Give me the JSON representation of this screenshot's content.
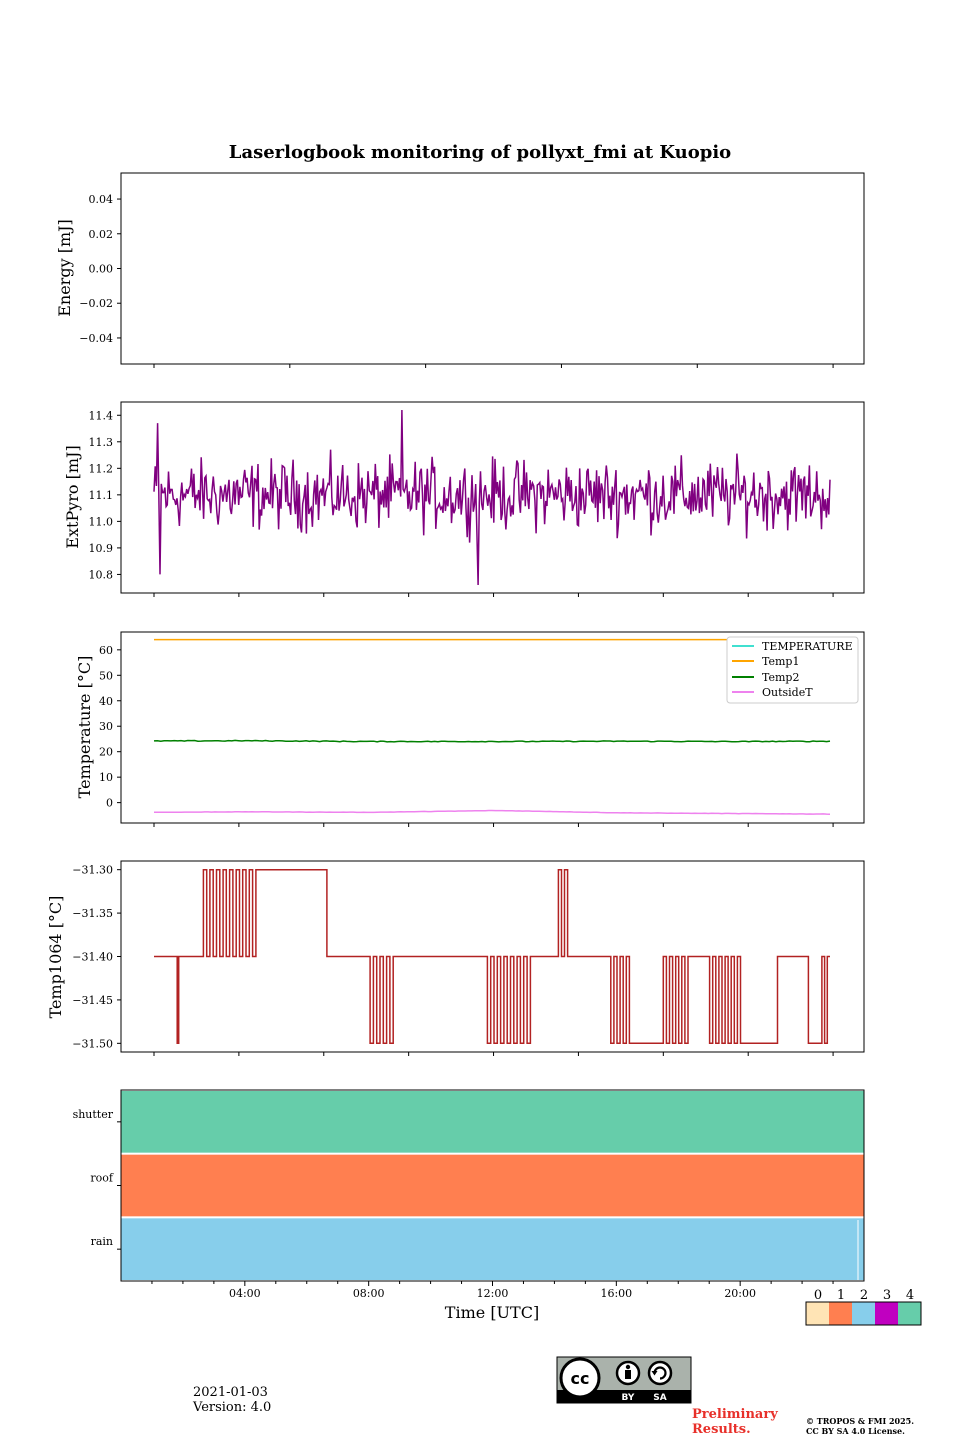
{
  "figure": {
    "title": "Laserlogbook monitoring of pollyxt_fmi at Kuopio",
    "xlabel": "Time [UTC]",
    "date": "2021-01-03",
    "version": "Version: 4.0",
    "prelim_line1": "Preliminary",
    "prelim_line2": "Results.",
    "copyright_line1": "© TROPOS & FMI 2025.",
    "copyright_line2": "CC BY SA 4.0 License.",
    "license_badge": {
      "by": "BY",
      "sa": "SA",
      "cc": "cc"
    }
  },
  "chart_data": [
    {
      "id": "energy",
      "type": "line",
      "ylabel": "Energy [mJ]",
      "ylim": [
        -0.055,
        0.055
      ],
      "yticks": [
        0.04,
        0.02,
        0.0,
        -0.02,
        -0.04
      ],
      "ytick_labels": [
        "0.04",
        "0.02",
        "0.00",
        "−0.02",
        "−0.04"
      ],
      "series": []
    },
    {
      "id": "extpyro",
      "type": "line",
      "ylabel": "ExtPyro [mJ]",
      "ylim": [
        10.73,
        11.45
      ],
      "yticks": [
        11.4,
        11.3,
        11.2,
        11.1,
        11.0,
        10.9,
        10.8
      ],
      "ytick_labels": [
        "11.4",
        "11.3",
        "11.2",
        "11.1",
        "11.0",
        "10.9",
        "10.8"
      ],
      "x_range_hours": [
        1.0,
        22.9
      ],
      "mean": 11.1,
      "spread": 0.1,
      "min": 10.76,
      "max": 11.42,
      "color": "#800080"
    },
    {
      "id": "temperature",
      "type": "line",
      "ylabel": "Temperature [°C]",
      "ylim": [
        -8,
        67
      ],
      "yticks": [
        60,
        50,
        40,
        30,
        20,
        10,
        0
      ],
      "ytick_labels": [
        "60",
        "50",
        "40",
        "30",
        "20",
        "10",
        "0"
      ],
      "series": [
        {
          "name": "TEMPERATURE",
          "color": "#40e0d0",
          "points": []
        },
        {
          "name": "Temp1",
          "color": "#ffa500",
          "points": [
            [
              1.0,
              64.0
            ],
            [
              22.9,
              64.0
            ]
          ]
        },
        {
          "name": "Temp2",
          "color": "#008000",
          "points": [
            [
              1.0,
              24.2
            ],
            [
              4.0,
              24.3
            ],
            [
              8.0,
              24.0
            ],
            [
              12.0,
              24.0
            ],
            [
              16.0,
              24.1
            ],
            [
              20.0,
              24.0
            ],
            [
              22.9,
              24.1
            ]
          ]
        },
        {
          "name": "OutsideT",
          "color": "#ee82ee",
          "points": [
            [
              1.0,
              -3.8
            ],
            [
              4.0,
              -3.6
            ],
            [
              8.0,
              -3.8
            ],
            [
              11.0,
              -3.3
            ],
            [
              12.0,
              -3.1
            ],
            [
              14.0,
              -3.5
            ],
            [
              16.0,
              -4.0
            ],
            [
              20.0,
              -4.3
            ],
            [
              22.9,
              -4.5
            ]
          ]
        }
      ],
      "legend_loc": "upper right"
    },
    {
      "id": "temp1064",
      "type": "line",
      "ylabel": "Temp1064 [°C]",
      "ylim": [
        -31.51,
        -31.29
      ],
      "yticks": [
        -31.3,
        -31.35,
        -31.4,
        -31.45,
        -31.5
      ],
      "ytick_labels": [
        "−31.30",
        "−31.35",
        "−31.40",
        "−31.45",
        "−31.50"
      ],
      "color": "#b22222",
      "levels": [
        -31.3,
        -31.4,
        -31.5
      ],
      "segments": [
        {
          "from": 1.0,
          "to": 1.75,
          "level": -31.4
        },
        {
          "from": 1.75,
          "to": 1.8,
          "level": -31.5
        },
        {
          "from": 1.8,
          "to": 2.6,
          "level": -31.4
        },
        {
          "from": 2.6,
          "to": 4.3,
          "level": "toggle_high"
        },
        {
          "from": 4.3,
          "to": 6.6,
          "level": -31.3
        },
        {
          "from": 6.6,
          "to": 8.0,
          "level": -31.4
        },
        {
          "from": 8.0,
          "to": 8.75,
          "level": "toggle_low"
        },
        {
          "from": 8.75,
          "to": 11.8,
          "level": -31.4
        },
        {
          "from": 11.8,
          "to": 13.3,
          "level": "toggle_low"
        },
        {
          "from": 13.3,
          "to": 14.1,
          "level": -31.4
        },
        {
          "from": 14.1,
          "to": 14.5,
          "level": "toggle_high"
        },
        {
          "from": 14.5,
          "to": 15.8,
          "level": -31.4
        },
        {
          "from": 15.8,
          "to": 16.5,
          "level": "toggle_low"
        },
        {
          "from": 16.5,
          "to": 17.4,
          "level": -31.5
        },
        {
          "from": 17.4,
          "to": 18.3,
          "level": "toggle_low"
        },
        {
          "from": 18.3,
          "to": 19.0,
          "level": -31.4
        },
        {
          "from": 19.0,
          "to": 20.0,
          "level": "toggle_low"
        },
        {
          "from": 20.0,
          "to": 21.2,
          "level": -31.5
        },
        {
          "from": 21.2,
          "to": 22.2,
          "level": -31.4
        },
        {
          "from": 22.2,
          "to": 22.55,
          "level": -31.5
        },
        {
          "from": 22.55,
          "to": 22.9,
          "level": "toggle_low"
        }
      ]
    },
    {
      "id": "status",
      "type": "heatmap",
      "rows": [
        "shutter",
        "roof",
        "rain"
      ],
      "values": [
        4,
        1,
        2
      ],
      "xlim_hours": [
        0,
        24
      ],
      "xticks_hours": [
        4,
        8,
        12,
        16,
        20
      ],
      "xtick_labels": [
        "04:00",
        "08:00",
        "12:00",
        "16:00",
        "20:00"
      ],
      "colormap": {
        "labels": [
          "0",
          "1",
          "2",
          "3",
          "4"
        ],
        "colors": [
          "#ffe4b5",
          "#ff7f50",
          "#87ceeb",
          "#c000c0",
          "#66cdaa"
        ]
      }
    }
  ]
}
